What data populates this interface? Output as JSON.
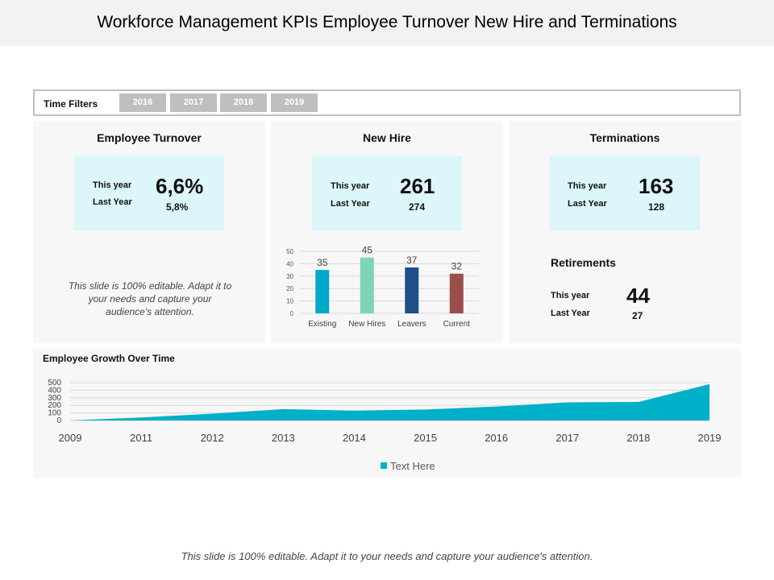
{
  "title": "Workforce Management KPIs Employee Turnover New Hire and Terminations",
  "filters": {
    "label": "Time Filters",
    "years": [
      "2016",
      "2017",
      "2018",
      "2019"
    ]
  },
  "turnover": {
    "title": "Employee Turnover",
    "this_year_label": "This year",
    "last_year_label": "Last Year",
    "this_year_value": "6,6%",
    "last_year_value": "5,8%",
    "note": "This slide is 100% editable. Adapt it to your needs and capture your audience's attention."
  },
  "new_hire": {
    "title": "New Hire",
    "this_year_label": "This year",
    "last_year_label": "Last Year",
    "this_year_value": "261",
    "last_year_value": "274"
  },
  "terminations": {
    "title": "Terminations",
    "this_year_label": "This year",
    "last_year_label": "Last Year",
    "this_year_value": "163",
    "last_year_value": "128"
  },
  "retirements": {
    "title": "Retirements",
    "this_year_label": "This year",
    "last_year_label": "Last Year",
    "this_year_value": "44",
    "last_year_value": "27"
  },
  "growth": {
    "title": "Employee Growth Over Time"
  },
  "footer": "This slide is 100% editable.  Adapt it to your needs and capture your audience's attention.",
  "colors": {
    "kpi_bg": "#dcf6fb",
    "area": "#00afc8",
    "bar_existing": "#00a9c7",
    "bar_new_hires": "#7fd3b8",
    "bar_leavers": "#1f4e89",
    "bar_current": "#9b4f4d"
  },
  "chart_data": [
    {
      "type": "bar",
      "categories": [
        "Existing",
        "New Hires",
        "Leavers",
        "Current"
      ],
      "values": [
        35,
        45,
        37,
        32
      ],
      "ylim": [
        0,
        50
      ],
      "yticks": [
        0,
        10,
        20,
        30,
        40,
        50
      ],
      "grid": true
    },
    {
      "type": "area",
      "x": [
        "2009",
        "2011",
        "2012",
        "2013",
        "2014",
        "2015",
        "2016",
        "2017",
        "2018",
        "2019"
      ],
      "series": [
        {
          "name": "Text Here",
          "values": [
            0,
            40,
            90,
            150,
            130,
            145,
            185,
            240,
            245,
            480
          ]
        }
      ],
      "ylim": [
        0,
        500
      ],
      "yticks": [
        0,
        100,
        200,
        300,
        400,
        500
      ],
      "legend": "bottom",
      "grid": true
    }
  ]
}
